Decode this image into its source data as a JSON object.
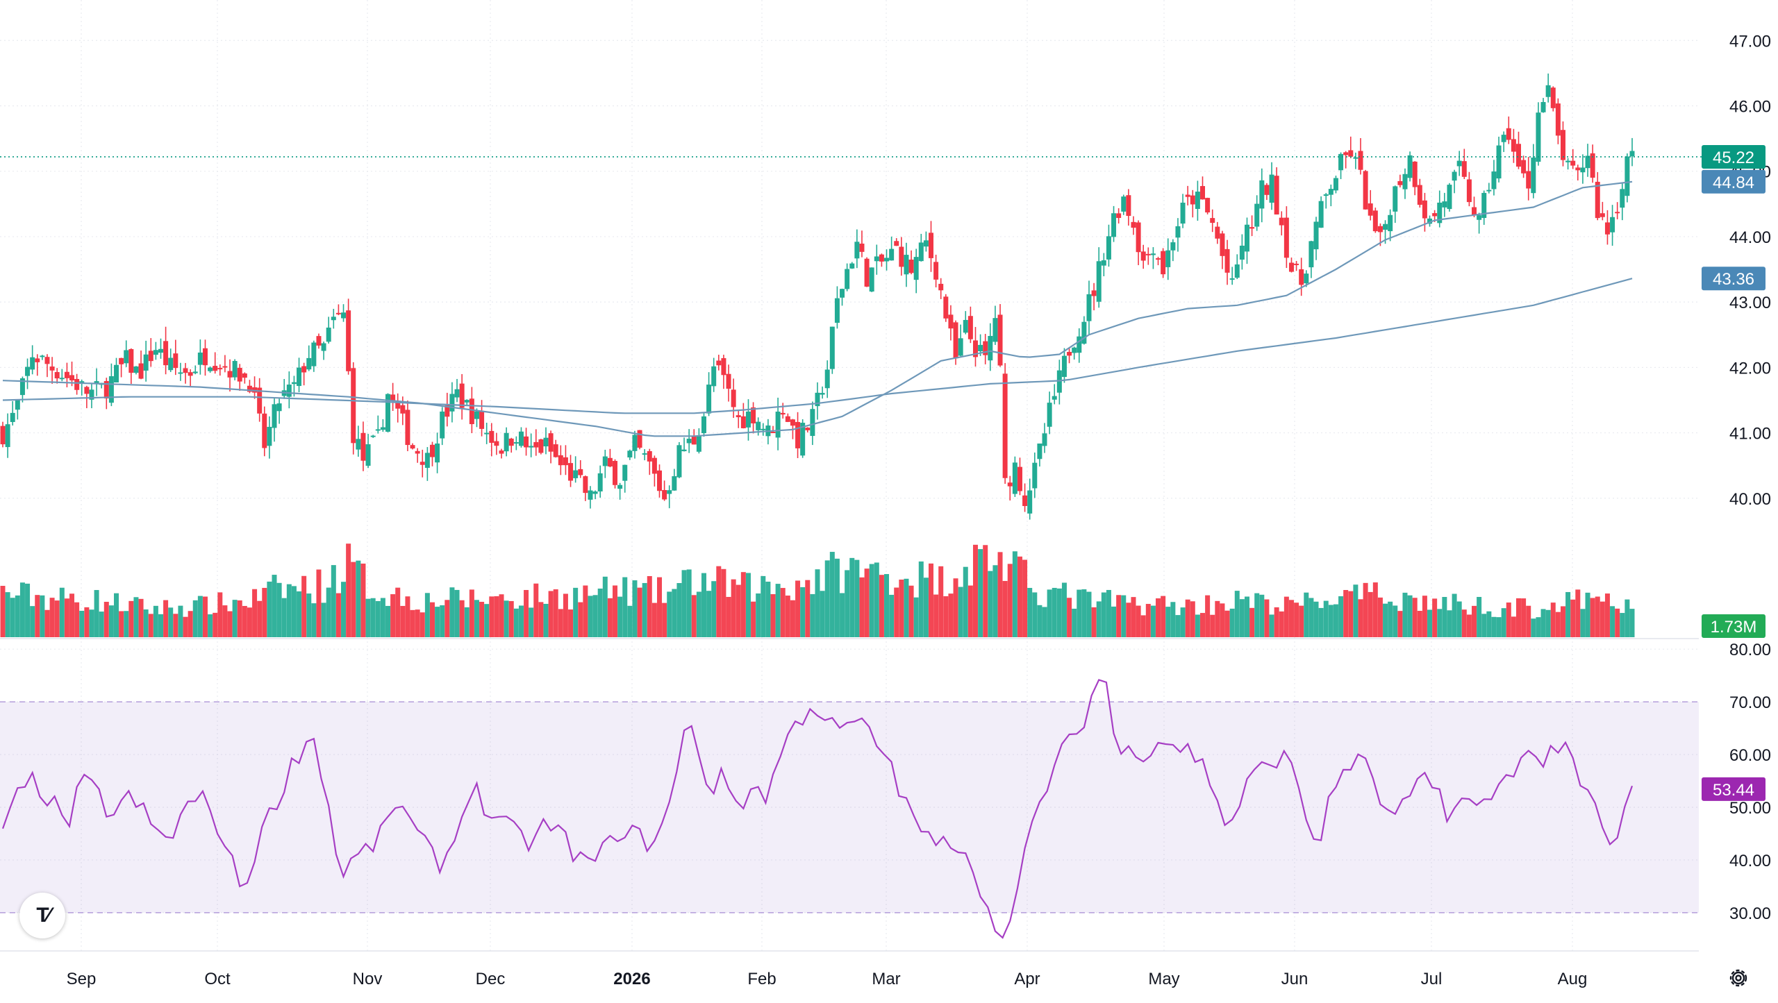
{
  "chart_data": {
    "type": "candlestick",
    "price_axis": {
      "range": [
        39.0,
        47.3
      ],
      "ticks": [
        "40.00",
        "41.00",
        "42.00",
        "43.00",
        "44.00",
        "45.00",
        "46.00",
        "47.00"
      ]
    },
    "rsi_axis": {
      "range": [
        23,
        82
      ],
      "ticks": [
        "30.00",
        "40.00",
        "50.00",
        "60.00",
        "70.00",
        "80.00"
      ],
      "band": [
        30,
        70
      ]
    },
    "time_axis": {
      "labels": [
        "Sep",
        "Oct",
        "Nov",
        "Dec",
        "2026",
        "Feb",
        "Mar",
        "Apr",
        "May",
        "Jun",
        "Jul",
        "Aug"
      ]
    },
    "price_tags": {
      "last": "45.22",
      "ma_short": "44.84",
      "ma_long": "43.36",
      "volume": "1.73M"
    },
    "rsi_tag": "53.44",
    "waypoints": {
      "close": [
        [
          0,
          41.0
        ],
        [
          5,
          41.3
        ],
        [
          12,
          42.2
        ],
        [
          20,
          42.0
        ],
        [
          28,
          41.8
        ],
        [
          35,
          41.6
        ],
        [
          42,
          41.7
        ],
        [
          50,
          42.1
        ],
        [
          55,
          41.9
        ],
        [
          62,
          42.3
        ],
        [
          68,
          42.0
        ],
        [
          75,
          41.9
        ],
        [
          82,
          42.2
        ],
        [
          92,
          42.0
        ],
        [
          100,
          41.8
        ],
        [
          106,
          40.8
        ],
        [
          112,
          41.5
        ],
        [
          118,
          41.7
        ],
        [
          124,
          42.2
        ],
        [
          130,
          42.3
        ],
        [
          134,
          42.7
        ],
        [
          138,
          42.8
        ],
        [
          140,
          41.9
        ],
        [
          142,
          41.0
        ],
        [
          146,
          40.6
        ],
        [
          152,
          40.9
        ],
        [
          156,
          41.6
        ],
        [
          160,
          41.3
        ],
        [
          166,
          40.8
        ],
        [
          172,
          40.6
        ],
        [
          178,
          41.2
        ],
        [
          184,
          41.6
        ],
        [
          190,
          41.3
        ],
        [
          196,
          41.0
        ],
        [
          202,
          40.8
        ],
        [
          208,
          41.0
        ],
        [
          214,
          40.7
        ],
        [
          220,
          40.8
        ],
        [
          226,
          40.5
        ],
        [
          232,
          40.3
        ],
        [
          238,
          40.0
        ],
        [
          244,
          40.5
        ],
        [
          250,
          40.3
        ],
        [
          256,
          40.8
        ],
        [
          262,
          40.5
        ],
        [
          268,
          40.0
        ],
        [
          274,
          40.7
        ],
        [
          280,
          40.9
        ],
        [
          284,
          41.3
        ],
        [
          288,
          42.0
        ],
        [
          292,
          41.8
        ],
        [
          298,
          41.2
        ],
        [
          304,
          41.3
        ],
        [
          310,
          41.0
        ],
        [
          316,
          41.4
        ],
        [
          322,
          40.9
        ],
        [
          328,
          41.2
        ],
        [
          334,
          42.0
        ],
        [
          338,
          43.0
        ],
        [
          342,
          43.5
        ],
        [
          346,
          43.9
        ],
        [
          350,
          43.4
        ],
        [
          356,
          43.6
        ],
        [
          362,
          43.8
        ],
        [
          368,
          43.5
        ],
        [
          374,
          43.9
        ],
        [
          378,
          43.5
        ],
        [
          382,
          42.8
        ],
        [
          386,
          42.1
        ],
        [
          390,
          42.6
        ],
        [
          394,
          42.3
        ],
        [
          398,
          42.1
        ],
        [
          402,
          42.8
        ],
        [
          404,
          41.9
        ],
        [
          406,
          40.2
        ],
        [
          410,
          40.5
        ],
        [
          414,
          40.0
        ],
        [
          418,
          40.4
        ],
        [
          424,
          41.3
        ],
        [
          428,
          41.8
        ],
        [
          432,
          42.3
        ],
        [
          438,
          42.8
        ],
        [
          442,
          43.2
        ],
        [
          446,
          43.8
        ],
        [
          450,
          44.3
        ],
        [
          454,
          44.6
        ],
        [
          458,
          44.2
        ],
        [
          462,
          43.6
        ],
        [
          466,
          43.9
        ],
        [
          470,
          43.5
        ],
        [
          474,
          44.0
        ],
        [
          478,
          44.4
        ],
        [
          482,
          44.6
        ],
        [
          486,
          44.5
        ],
        [
          490,
          44.2
        ],
        [
          494,
          43.7
        ],
        [
          498,
          43.2
        ],
        [
          502,
          43.9
        ],
        [
          506,
          44.2
        ],
        [
          510,
          44.7
        ],
        [
          514,
          44.8
        ],
        [
          518,
          44.2
        ],
        [
          522,
          43.5
        ],
        [
          526,
          43.3
        ],
        [
          530,
          43.9
        ],
        [
          534,
          44.4
        ],
        [
          538,
          44.8
        ],
        [
          542,
          45.1
        ],
        [
          546,
          45.3
        ],
        [
          550,
          44.9
        ],
        [
          554,
          44.2
        ],
        [
          558,
          43.9
        ],
        [
          562,
          44.5
        ],
        [
          566,
          44.9
        ],
        [
          570,
          45.2
        ],
        [
          574,
          44.6
        ],
        [
          578,
          44.2
        ],
        [
          582,
          44.5
        ],
        [
          586,
          44.7
        ],
        [
          590,
          45.0
        ],
        [
          594,
          44.6
        ],
        [
          598,
          44.2
        ],
        [
          602,
          44.8
        ],
        [
          606,
          45.3
        ],
        [
          610,
          45.6
        ],
        [
          614,
          45.0
        ],
        [
          618,
          44.8
        ],
        [
          622,
          45.9
        ],
        [
          626,
          46.2
        ],
        [
          630,
          45.5
        ],
        [
          634,
          45.0
        ],
        [
          638,
          44.9
        ],
        [
          642,
          45.3
        ],
        [
          646,
          44.4
        ],
        [
          650,
          44.1
        ],
        [
          654,
          44.5
        ],
        [
          658,
          45.2
        ]
      ],
      "rsi": [
        [
          0,
          45
        ],
        [
          6,
          52
        ],
        [
          12,
          55
        ],
        [
          20,
          51
        ],
        [
          26,
          46
        ],
        [
          32,
          55
        ],
        [
          38,
          53
        ],
        [
          44,
          48
        ],
        [
          50,
          52
        ],
        [
          56,
          50
        ],
        [
          62,
          45
        ],
        [
          68,
          44
        ],
        [
          74,
          50
        ],
        [
          80,
          52
        ],
        [
          86,
          48
        ],
        [
          92,
          40
        ],
        [
          98,
          34
        ],
        [
          104,
          45
        ],
        [
          110,
          50
        ],
        [
          116,
          57
        ],
        [
          122,
          62
        ],
        [
          126,
          63
        ],
        [
          130,
          55
        ],
        [
          134,
          45
        ],
        [
          136,
          37
        ],
        [
          142,
          40
        ],
        [
          148,
          42
        ],
        [
          154,
          45
        ],
        [
          160,
          52
        ],
        [
          166,
          46
        ],
        [
          172,
          42
        ],
        [
          178,
          39
        ],
        [
          184,
          45
        ],
        [
          190,
          55
        ],
        [
          196,
          49
        ],
        [
          202,
          47
        ],
        [
          208,
          45
        ],
        [
          214,
          43
        ],
        [
          220,
          47
        ],
        [
          226,
          45
        ],
        [
          232,
          41
        ],
        [
          238,
          39
        ],
        [
          244,
          42
        ],
        [
          250,
          46
        ],
        [
          256,
          45
        ],
        [
          262,
          43
        ],
        [
          268,
          47
        ],
        [
          274,
          58
        ],
        [
          278,
          69
        ],
        [
          282,
          60
        ],
        [
          286,
          53
        ],
        [
          292,
          56
        ],
        [
          298,
          50
        ],
        [
          304,
          54
        ],
        [
          310,
          52
        ],
        [
          316,
          62
        ],
        [
          322,
          66
        ],
        [
          328,
          70
        ],
        [
          334,
          66
        ],
        [
          340,
          64
        ],
        [
          346,
          67
        ],
        [
          352,
          63
        ],
        [
          358,
          60
        ],
        [
          362,
          55
        ],
        [
          366,
          50
        ],
        [
          372,
          46
        ],
        [
          378,
          42
        ],
        [
          384,
          44
        ],
        [
          390,
          42
        ],
        [
          396,
          35
        ],
        [
          400,
          28
        ],
        [
          404,
          27
        ],
        [
          408,
          28
        ],
        [
          412,
          36
        ],
        [
          416,
          45
        ],
        [
          422,
          53
        ],
        [
          428,
          60
        ],
        [
          434,
          63
        ],
        [
          438,
          67
        ],
        [
          442,
          72
        ],
        [
          446,
          77
        ],
        [
          450,
          64
        ],
        [
          454,
          59
        ],
        [
          458,
          62
        ],
        [
          462,
          60
        ],
        [
          468,
          63
        ],
        [
          474,
          62
        ],
        [
          480,
          61
        ],
        [
          486,
          58
        ],
        [
          492,
          52
        ],
        [
          496,
          45
        ],
        [
          500,
          50
        ],
        [
          506,
          56
        ],
        [
          512,
          58
        ],
        [
          518,
          60
        ],
        [
          524,
          56
        ],
        [
          530,
          44
        ],
        [
          534,
          45
        ],
        [
          538,
          52
        ],
        [
          544,
          58
        ],
        [
          550,
          59
        ],
        [
          556,
          55
        ],
        [
          560,
          48
        ],
        [
          566,
          49
        ],
        [
          570,
          52
        ],
        [
          576,
          55
        ],
        [
          582,
          53
        ],
        [
          586,
          48
        ],
        [
          592,
          52
        ],
        [
          598,
          49
        ],
        [
          604,
          53
        ],
        [
          610,
          56
        ],
        [
          616,
          61
        ],
        [
          622,
          58
        ],
        [
          628,
          62
        ],
        [
          634,
          60
        ],
        [
          640,
          53
        ],
        [
          644,
          51
        ],
        [
          648,
          46
        ],
        [
          652,
          41
        ],
        [
          656,
          48
        ],
        [
          660,
          53
        ]
      ],
      "ma_short": [
        [
          0,
          41.8
        ],
        [
          40,
          41.75
        ],
        [
          80,
          41.7
        ],
        [
          120,
          41.6
        ],
        [
          140,
          41.55
        ],
        [
          170,
          41.45
        ],
        [
          200,
          41.3
        ],
        [
          240,
          41.1
        ],
        [
          262,
          40.95
        ],
        [
          280,
          40.95
        ],
        [
          300,
          41.0
        ],
        [
          320,
          41.05
        ],
        [
          340,
          41.25
        ],
        [
          360,
          41.65
        ],
        [
          380,
          42.1
        ],
        [
          400,
          42.25
        ],
        [
          414,
          42.15
        ],
        [
          428,
          42.2
        ],
        [
          440,
          42.5
        ],
        [
          460,
          42.75
        ],
        [
          480,
          42.9
        ],
        [
          500,
          42.95
        ],
        [
          520,
          43.1
        ],
        [
          540,
          43.5
        ],
        [
          560,
          43.95
        ],
        [
          580,
          44.25
        ],
        [
          600,
          44.35
        ],
        [
          620,
          44.45
        ],
        [
          640,
          44.75
        ],
        [
          660,
          44.84
        ]
      ],
      "ma_long": [
        [
          0,
          41.5
        ],
        [
          50,
          41.55
        ],
        [
          100,
          41.55
        ],
        [
          150,
          41.48
        ],
        [
          200,
          41.4
        ],
        [
          250,
          41.3
        ],
        [
          280,
          41.3
        ],
        [
          300,
          41.35
        ],
        [
          330,
          41.45
        ],
        [
          360,
          41.6
        ],
        [
          400,
          41.75
        ],
        [
          430,
          41.8
        ],
        [
          460,
          42.0
        ],
        [
          500,
          42.25
        ],
        [
          540,
          42.45
        ],
        [
          580,
          42.7
        ],
        [
          620,
          42.95
        ],
        [
          660,
          43.36
        ]
      ],
      "volume": [
        [
          0,
          0.85
        ],
        [
          20,
          0.75
        ],
        [
          40,
          0.7
        ],
        [
          60,
          0.55
        ],
        [
          80,
          0.6
        ],
        [
          100,
          0.7
        ],
        [
          110,
          0.9
        ],
        [
          130,
          1.0
        ],
        [
          140,
          1.4
        ],
        [
          150,
          0.9
        ],
        [
          170,
          0.7
        ],
        [
          200,
          0.75
        ],
        [
          230,
          0.8
        ],
        [
          250,
          0.9
        ],
        [
          270,
          0.85
        ],
        [
          280,
          1.1
        ],
        [
          300,
          0.95
        ],
        [
          320,
          1.0
        ],
        [
          340,
          1.3
        ],
        [
          360,
          1.2
        ],
        [
          380,
          1.1
        ],
        [
          400,
          1.6
        ],
        [
          420,
          0.9
        ],
        [
          440,
          0.7
        ],
        [
          460,
          0.65
        ],
        [
          480,
          0.6
        ],
        [
          500,
          0.7
        ],
        [
          520,
          0.6
        ],
        [
          540,
          0.75
        ],
        [
          560,
          0.8
        ],
        [
          580,
          0.65
        ],
        [
          600,
          0.6
        ],
        [
          620,
          0.55
        ],
        [
          640,
          0.7
        ],
        [
          660,
          0.6
        ]
      ]
    }
  }
}
